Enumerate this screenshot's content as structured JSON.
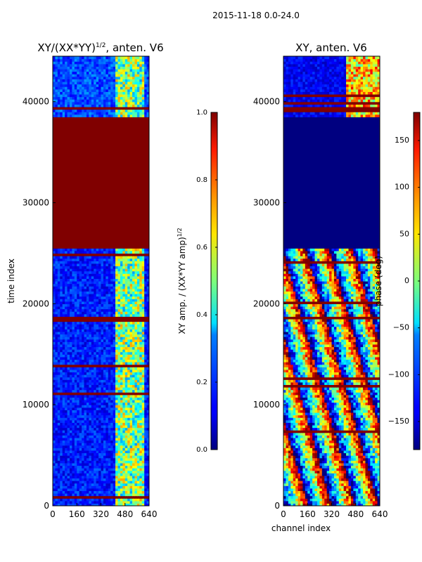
{
  "figure": {
    "suptitle": "2015-11-18 0.0-24.0"
  },
  "chart_data": [
    {
      "type": "heatmap",
      "title": "XY/(XX*YY)",
      "title_exponent": "1/2",
      "title_suffix": ", anten. V6",
      "xlabel": "",
      "ylabel": "time index",
      "xlim": [
        0,
        640
      ],
      "ylim": [
        0,
        44500
      ],
      "xticks": [
        0,
        160,
        320,
        480,
        640
      ],
      "yticks": [
        0,
        10000,
        20000,
        30000,
        40000
      ],
      "colorbar": {
        "label": "XY amp. / (XX*YY amp)",
        "label_exponent": "1/2",
        "range": [
          0,
          1
        ],
        "ticks": [
          "0.0",
          "0.2",
          "0.4",
          "0.6",
          "0.8",
          "1.0"
        ],
        "tick_values": [
          0,
          0.2,
          0.4,
          0.6,
          0.8,
          1.0
        ],
        "colormap": "jet"
      },
      "regions": [
        {
          "t0": 0,
          "t1": 25500,
          "value": 0.15,
          "pattern": "noise"
        },
        {
          "t0": 25500,
          "t1": 38500,
          "value": 1.0,
          "pattern": "solid"
        },
        {
          "t0": 38500,
          "t1": 44500,
          "value": 0.2,
          "pattern": "noise"
        }
      ],
      "active_channels": [
        410,
        600
      ],
      "active_value": 0.5
    },
    {
      "type": "heatmap",
      "title": "XY, anten. V6",
      "xlabel": "channel index",
      "ylabel": "",
      "xlim": [
        0,
        640
      ],
      "ylim": [
        0,
        44500
      ],
      "xticks": [
        0,
        160,
        320,
        480,
        640
      ],
      "yticks": [
        0,
        10000,
        20000,
        30000,
        40000
      ],
      "colorbar": {
        "label": "phase (deg)",
        "range": [
          -180,
          180
        ],
        "ticks": [
          "150",
          "100",
          "50",
          "0",
          "−50",
          "−100",
          "−150"
        ],
        "tick_values": [
          150,
          100,
          50,
          0,
          -50,
          -100,
          -150
        ],
        "colormap": "jet"
      },
      "regions": [
        {
          "t0": 0,
          "t1": 25500,
          "value": 0,
          "pattern": "phase-noise"
        },
        {
          "t0": 25500,
          "t1": 38500,
          "value": -180,
          "pattern": "solid"
        },
        {
          "t0": 38500,
          "t1": 44500,
          "value": -160,
          "pattern": "noise"
        }
      ],
      "active_channels": [
        410,
        640
      ],
      "active_value": 60
    }
  ]
}
